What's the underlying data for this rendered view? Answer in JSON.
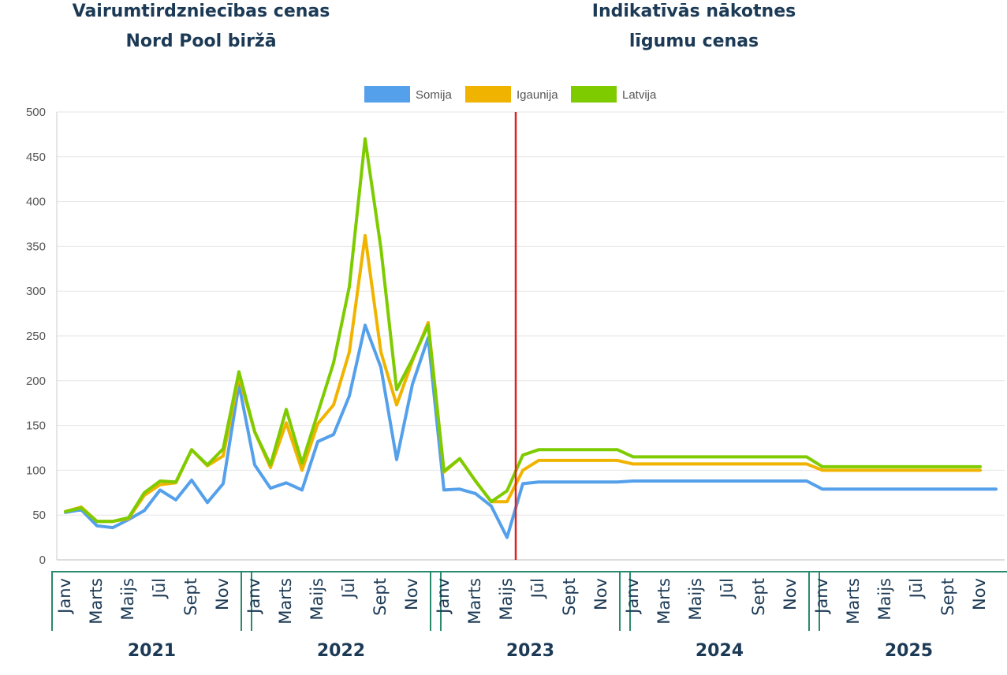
{
  "header": {
    "left_line1": "Vairumtirdzniecības cenas",
    "left_line2": "Nord Pool biržā",
    "right_line1": "Indikatīvās nākotnes",
    "right_line2": "līgumu cenas"
  },
  "chart_data": {
    "type": "line",
    "ylim": [
      0,
      500
    ],
    "yticks": [
      0,
      50,
      100,
      150,
      200,
      250,
      300,
      350,
      400,
      450,
      500
    ],
    "grid": true,
    "legend_position": "top-center",
    "month_labels": [
      "Janv",
      "Marts",
      "Maijs",
      "Jūl",
      "Sept",
      "Nov"
    ],
    "years": [
      "2021",
      "2022",
      "2023",
      "2024",
      "2025"
    ],
    "divider_after_month_index": 29,
    "divider_color": "#e02020",
    "series": [
      {
        "name": "Somija",
        "color": "#55a0ea",
        "values": [
          53,
          56,
          38,
          36,
          45,
          55,
          78,
          67,
          89,
          64,
          85,
          196,
          106,
          80,
          86,
          78,
          132,
          140,
          183,
          262,
          215,
          112,
          196,
          248,
          78,
          79,
          74,
          60,
          25,
          85,
          87,
          87,
          87,
          87,
          87,
          87,
          88,
          88,
          88,
          88,
          88,
          88,
          88,
          88,
          88,
          88,
          88,
          88,
          79,
          79,
          79,
          79,
          79,
          79,
          79,
          79,
          79,
          79,
          79,
          79
        ]
      },
      {
        "name": "Igaunija",
        "color": "#f0b400",
        "values": [
          54,
          59,
          43,
          43,
          46,
          72,
          84,
          86,
          123,
          105,
          116,
          205,
          143,
          103,
          153,
          100,
          152,
          173,
          232,
          362,
          232,
          173,
          222,
          265,
          98,
          113,
          88,
          65,
          65,
          100,
          111,
          111,
          111,
          111,
          111,
          111,
          107,
          107,
          107,
          107,
          107,
          107,
          107,
          107,
          107,
          107,
          107,
          107,
          100,
          100,
          100,
          100,
          100,
          100,
          100,
          100,
          100,
          100,
          100,
          null
        ]
      },
      {
        "name": "Latvija",
        "color": "#7ecb00",
        "values": [
          54,
          58,
          43,
          43,
          47,
          75,
          88,
          87,
          123,
          106,
          124,
          210,
          143,
          106,
          168,
          108,
          164,
          220,
          305,
          470,
          348,
          190,
          224,
          262,
          99,
          113,
          88,
          65,
          77,
          117,
          123,
          123,
          123,
          123,
          123,
          123,
          115,
          115,
          115,
          115,
          115,
          115,
          115,
          115,
          115,
          115,
          115,
          115,
          104,
          104,
          104,
          104,
          104,
          104,
          104,
          104,
          104,
          104,
          104,
          null
        ]
      }
    ]
  }
}
